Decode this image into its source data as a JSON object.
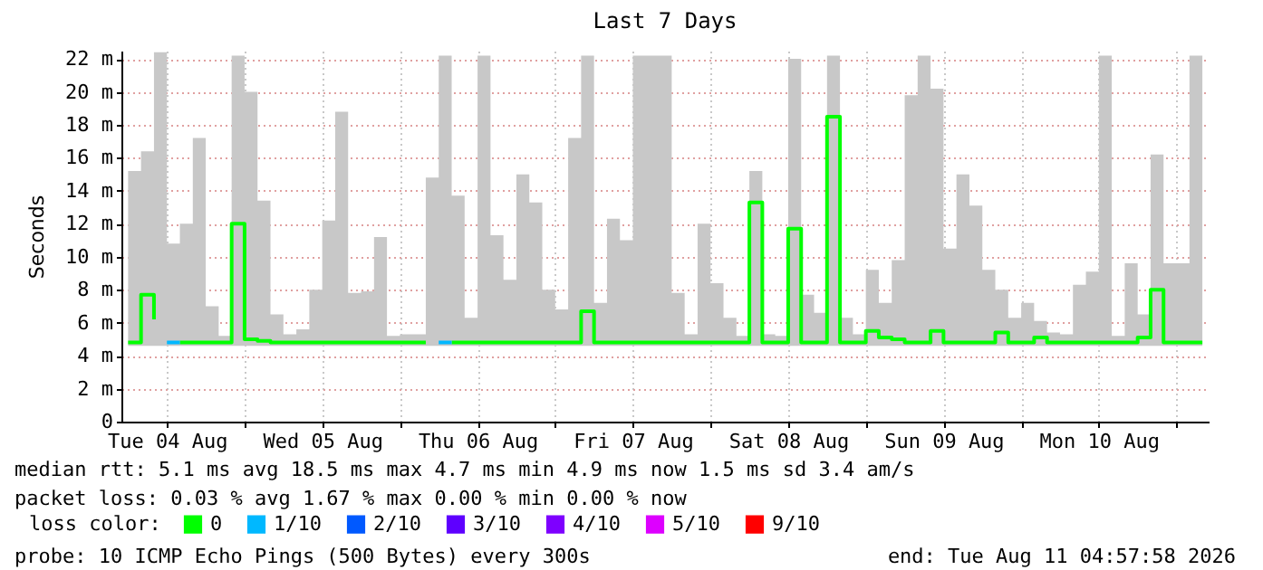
{
  "chart_data": {
    "type": "step",
    "title": "Last 7 Days",
    "ylabel": "Seconds",
    "legend_title": "loss color:",
    "legend": "bottom",
    "grid": true,
    "xlim": [
      "2026-08-04T04:58",
      "2026-08-11T04:58"
    ],
    "xticks": [
      {
        "value": "2026-08-04T12:00",
        "label": "Tue 04 Aug"
      },
      {
        "value": "2026-08-05T00:00",
        "label": null
      },
      {
        "value": "2026-08-05T12:00",
        "label": "Wed 05 Aug"
      },
      {
        "value": "2026-08-06T00:00",
        "label": null
      },
      {
        "value": "2026-08-06T12:00",
        "label": "Thu 06 Aug"
      },
      {
        "value": "2026-08-07T00:00",
        "label": null
      },
      {
        "value": "2026-08-07T12:00",
        "label": "Fri 07 Aug"
      },
      {
        "value": "2026-08-08T00:00",
        "label": null
      },
      {
        "value": "2026-08-08T12:00",
        "label": "Sat 08 Aug"
      },
      {
        "value": "2026-08-09T00:00",
        "label": null
      },
      {
        "value": "2026-08-09T12:00",
        "label": "Sun 09 Aug"
      },
      {
        "value": "2026-08-10T00:00",
        "label": null
      },
      {
        "value": "2026-08-10T12:00",
        "label": "Mon 10 Aug"
      },
      {
        "value": "2026-08-11T00:00",
        "label": null
      }
    ],
    "ylim": [
      0,
      22.5
    ],
    "yticks": [
      0,
      {
        "value": 2,
        "label": "2 m"
      },
      {
        "value": 4,
        "label": "4 m"
      },
      {
        "value": 6,
        "label": "6 m"
      },
      {
        "value": 8,
        "label": "8 m"
      },
      {
        "value": 10,
        "label": "10 m"
      },
      {
        "value": 12,
        "label": "12 m"
      },
      {
        "value": 14,
        "label": "14 m"
      },
      {
        "value": 16,
        "label": "16 m"
      },
      {
        "value": 18,
        "label": "18 m"
      },
      {
        "value": 20,
        "label": "20 m"
      },
      {
        "value": 22,
        "label": "22 m"
      }
    ],
    "x": [
      "2026-08-04T06:00",
      "2026-08-04T08:00",
      "2026-08-04T10:00",
      "2026-08-04T12:00",
      "2026-08-04T14:00",
      "2026-08-04T16:00",
      "2026-08-04T18:00",
      "2026-08-04T20:00",
      "2026-08-04T22:00",
      "2026-08-05T00:00",
      "2026-08-05T02:00",
      "2026-08-05T04:00",
      "2026-08-05T06:00",
      "2026-08-05T08:00",
      "2026-08-05T10:00",
      "2026-08-05T12:00",
      "2026-08-05T14:00",
      "2026-08-05T16:00",
      "2026-08-05T18:00",
      "2026-08-05T20:00",
      "2026-08-05T22:00",
      "2026-08-06T00:00",
      "2026-08-06T02:00",
      "2026-08-06T04:00",
      "2026-08-06T06:00",
      "2026-08-06T08:00",
      "2026-08-06T10:00",
      "2026-08-06T12:00",
      "2026-08-06T14:00",
      "2026-08-06T16:00",
      "2026-08-06T18:00",
      "2026-08-06T20:00",
      "2026-08-06T22:00",
      "2026-08-07T00:00",
      "2026-08-07T02:00",
      "2026-08-07T04:00",
      "2026-08-07T06:00",
      "2026-08-07T08:00",
      "2026-08-07T10:00",
      "2026-08-07T12:00",
      "2026-08-07T14:00",
      "2026-08-07T16:00",
      "2026-08-07T18:00",
      "2026-08-07T20:00",
      "2026-08-07T22:00",
      "2026-08-08T00:00",
      "2026-08-08T02:00",
      "2026-08-08T04:00",
      "2026-08-08T06:00",
      "2026-08-08T08:00",
      "2026-08-08T10:00",
      "2026-08-08T12:00",
      "2026-08-08T14:00",
      "2026-08-08T16:00",
      "2026-08-08T18:00",
      "2026-08-08T20:00",
      "2026-08-08T22:00",
      "2026-08-09T00:00",
      "2026-08-09T02:00",
      "2026-08-09T04:00",
      "2026-08-09T06:00",
      "2026-08-09T08:00",
      "2026-08-09T10:00",
      "2026-08-09T12:00",
      "2026-08-09T14:00",
      "2026-08-09T16:00",
      "2026-08-09T18:00",
      "2026-08-09T20:00",
      "2026-08-09T22:00",
      "2026-08-10T00:00",
      "2026-08-10T02:00",
      "2026-08-10T04:00",
      "2026-08-10T06:00",
      "2026-08-10T08:00",
      "2026-08-10T10:00",
      "2026-08-10T12:00",
      "2026-08-10T14:00",
      "2026-08-10T16:00",
      "2026-08-10T18:00",
      "2026-08-10T20:00",
      "2026-08-10T22:00",
      "2026-08-11T00:00",
      "2026-08-11T02:00",
      "2026-08-11T04:00"
    ],
    "series": [
      {
        "name": "0",
        "color": "#00ff00",
        "values": [
          4.8,
          7.7,
          6.2,
          null,
          4.8,
          4.8,
          4.8,
          4.8,
          12,
          5,
          4.9,
          4.8,
          4.8,
          4.8,
          4.8,
          4.8,
          4.8,
          4.8,
          4.8,
          4.8,
          4.8,
          4.8,
          4.8,
          4.8,
          null,
          4.8,
          4.8,
          4.8,
          4.8,
          4.8,
          4.8,
          4.8,
          4.8,
          4.8,
          4.8,
          6.7,
          4.8,
          4.8,
          4.8,
          4.8,
          4.8,
          4.8,
          4.8,
          4.8,
          4.8,
          4.8,
          4.8,
          4.8,
          13.3,
          4.8,
          4.8,
          11.7,
          4.8,
          4.8,
          18.5,
          4.8,
          4.8,
          5.5,
          5.1,
          5,
          4.8,
          4.8,
          5.5,
          4.8,
          4.8,
          4.8,
          4.8,
          5.4,
          4.8,
          4.8,
          5.1,
          4.8,
          4.8,
          4.8,
          4.8,
          4.8,
          4.8,
          4.8,
          5.1,
          8,
          4.8,
          4.8,
          4.8,
          4.8
        ],
        "lower": [
          4.6,
          4.6,
          4.6,
          4.6,
          4.6,
          4.6,
          4.6,
          4.6,
          4.6,
          4.6,
          4.6,
          4.6,
          4.6,
          4.6,
          4.6,
          4.6,
          4.6,
          4.6,
          4.6,
          4.6,
          4.6,
          4.6,
          4.6,
          4.6,
          4.6,
          4.6,
          4.6,
          4.6,
          4.6,
          4.6,
          4.6,
          4.6,
          4.6,
          4.6,
          4.6,
          4.6,
          4.6,
          4.6,
          4.6,
          4.6,
          4.6,
          4.6,
          4.6,
          4.6,
          4.6,
          4.6,
          4.6,
          4.6,
          4.6,
          4.6,
          4.6,
          4.6,
          4.6,
          4.6,
          4.6,
          4.6,
          4.6,
          4.6,
          4.6,
          4.6,
          4.6,
          4.6,
          4.6,
          4.6,
          4.6,
          4.6,
          4.6,
          4.6,
          4.6,
          4.6,
          4.6,
          4.6,
          4.6,
          4.6,
          4.6,
          4.6,
          4.6,
          4.6,
          4.6,
          4.6,
          4.6,
          4.6,
          4.6,
          4.6
        ],
        "upper": [
          15.2,
          16.4,
          22.4,
          10.8,
          12,
          17.2,
          7,
          5.2,
          22.2,
          20,
          13.4,
          6.5,
          5.3,
          5.6,
          8,
          12.2,
          18.8,
          7.8,
          7.9,
          11.2,
          5.2,
          5.3,
          5.3,
          14.8,
          22.2,
          13.7,
          6.3,
          22.2,
          11.3,
          8.6,
          15,
          13.3,
          8,
          6.8,
          17.2,
          22.2,
          7.2,
          12.3,
          11,
          22.2,
          22.2,
          22.2,
          7.8,
          5.3,
          12,
          8.4,
          6.3,
          5.2,
          15.2,
          5.3,
          5.2,
          22,
          7.7,
          6.6,
          22.2,
          6.3,
          5.3,
          9.2,
          7.2,
          9.8,
          19.8,
          22.2,
          20.2,
          10.5,
          15,
          13.1,
          9.2,
          8,
          6.3,
          7.2,
          6.1,
          5.4,
          5.3,
          8.3,
          9.1,
          22.2,
          5.2,
          9.6,
          6.5,
          16.2,
          9.6,
          9.6,
          22.2,
          5.2
        ]
      },
      {
        "name": "1/10",
        "color": "#00b8ff",
        "x": [
          "2026-08-04T12:00",
          "2026-08-04T14:00",
          "2026-08-05T00:00",
          "2026-08-06T06:00",
          "2026-08-06T08:00"
        ],
        "values": [
          4.8,
          4.8,
          null,
          4.8,
          4.8
        ]
      },
      {
        "name": "2/10",
        "color": "#0059ff",
        "values": [
          null,
          null,
          null,
          null,
          null,
          null,
          null,
          null,
          null,
          null,
          null,
          null,
          null,
          null,
          null,
          null,
          null,
          null,
          null,
          null,
          null,
          null,
          null,
          null,
          null,
          null,
          null,
          null,
          null,
          null,
          null,
          null,
          null,
          null,
          null,
          null,
          null,
          null,
          null,
          null,
          null,
          null,
          null,
          null,
          null,
          null,
          null,
          null,
          null,
          null,
          null,
          null,
          null,
          null,
          null,
          null,
          null,
          null,
          null,
          null,
          null,
          null,
          null,
          null,
          null,
          null,
          null,
          null,
          null,
          null,
          null,
          null,
          null,
          null,
          null,
          null,
          null,
          null,
          null,
          null,
          null,
          null,
          null,
          null
        ]
      },
      {
        "name": "3/10",
        "color": "#5e00ff",
        "values": [
          null,
          null,
          null,
          null,
          null,
          null,
          null,
          null,
          null,
          null,
          null,
          null,
          null,
          null,
          null,
          null,
          null,
          null,
          null,
          null,
          null,
          null,
          null,
          null,
          null,
          null,
          null,
          null,
          null,
          null,
          null,
          null,
          null,
          null,
          null,
          null,
          null,
          null,
          null,
          null,
          null,
          null,
          null,
          null,
          null,
          null,
          null,
          null,
          null,
          null,
          null,
          null,
          null,
          null,
          null,
          null,
          null,
          null,
          null,
          null,
          null,
          null,
          null,
          null,
          null,
          null,
          null,
          null,
          null,
          null,
          null,
          null,
          null,
          null,
          null,
          null,
          null,
          null,
          null,
          null,
          null,
          null,
          null,
          null
        ]
      },
      {
        "name": "4/10",
        "color": "#7e00ff",
        "values": [
          null,
          null,
          null,
          null,
          null,
          null,
          null,
          null,
          null,
          null,
          null,
          null,
          null,
          null,
          null,
          null,
          null,
          null,
          null,
          null,
          null,
          null,
          null,
          null,
          null,
          null,
          null,
          null,
          null,
          null,
          null,
          null,
          null,
          null,
          null,
          null,
          null,
          null,
          null,
          null,
          null,
          null,
          null,
          null,
          null,
          null,
          null,
          null,
          null,
          null,
          null,
          null,
          null,
          null,
          null,
          null,
          null,
          null,
          null,
          null,
          null,
          null,
          null,
          null,
          null,
          null,
          null,
          null,
          null,
          null,
          null,
          null,
          null,
          null,
          null,
          null,
          null,
          null,
          null,
          null,
          null,
          null,
          null,
          null
        ]
      },
      {
        "name": "5/10",
        "color": "#dd00ff",
        "values": [
          null,
          null,
          null,
          null,
          null,
          null,
          null,
          null,
          null,
          null,
          null,
          null,
          null,
          null,
          null,
          null,
          null,
          null,
          null,
          null,
          null,
          null,
          null,
          null,
          null,
          null,
          null,
          null,
          null,
          null,
          null,
          null,
          null,
          null,
          null,
          null,
          null,
          null,
          null,
          null,
          null,
          null,
          null,
          null,
          null,
          null,
          null,
          null,
          null,
          null,
          null,
          null,
          null,
          null,
          null,
          null,
          null,
          null,
          null,
          null,
          null,
          null,
          null,
          null,
          null,
          null,
          null,
          null,
          null,
          null,
          null,
          null,
          null,
          null,
          null,
          null,
          null,
          null,
          null,
          null,
          null,
          null,
          null,
          null
        ]
      },
      {
        "name": "9/10",
        "color": "#ff0000",
        "values": [
          null,
          null,
          null,
          null,
          null,
          null,
          null,
          null,
          null,
          null,
          null,
          null,
          null,
          null,
          null,
          null,
          null,
          null,
          null,
          null,
          null,
          null,
          null,
          null,
          null,
          null,
          null,
          null,
          null,
          null,
          null,
          null,
          null,
          null,
          null,
          null,
          null,
          null,
          null,
          null,
          null,
          null,
          null,
          null,
          null,
          null,
          null,
          null,
          null,
          null,
          null,
          null,
          null,
          null,
          null,
          null,
          null,
          null,
          null,
          null,
          null,
          null,
          null,
          null,
          null,
          null,
          null,
          null,
          null,
          null,
          null,
          null,
          null,
          null,
          null,
          null,
          null,
          null,
          null,
          null,
          null,
          null,
          null,
          null
        ]
      }
    ],
    "annotations": [
      "median rtt:  5.1 ms avg  18.5 ms max   4.7 ms min   4.9 ms now   1.5 ms sd   3.4   am/s",
      "packet loss: 0.03 % avg  1.67 % max   0.00 % min   0.00 % now",
      "probe:        10 ICMP Echo Pings (500 Bytes) every 300s",
      "end: Tue Aug 11 04:57:58 2026"
    ]
  }
}
